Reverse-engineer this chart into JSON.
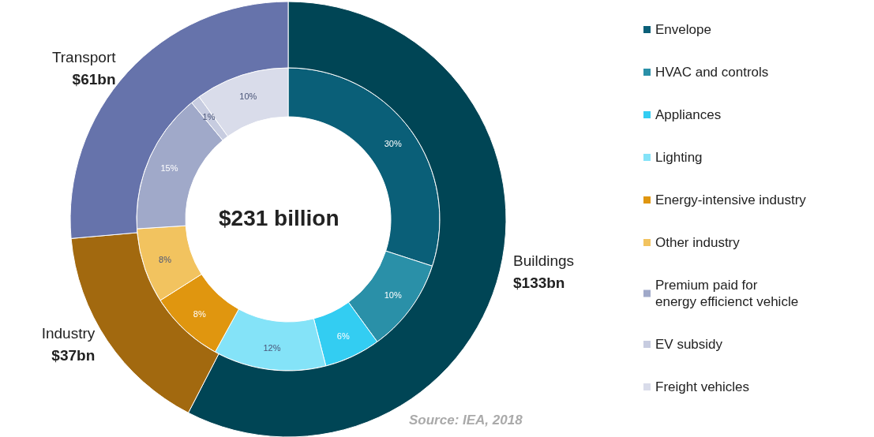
{
  "chart_data": [
    {
      "type": "donut",
      "annotations": [
        "$231 billion",
        "Source: IEA, 2018"
      ],
      "legend": "right",
      "categories": [
        "Envelope",
        "HVAC and controls",
        "Appliances",
        "Lighting",
        "Energy-intensive industry",
        "Other industry",
        "Premium paid for\nenergy efficienct vehicle",
        "EV subsidy",
        "Freight vehicles"
      ],
      "values": [
        30,
        10,
        6,
        12,
        8,
        8,
        15,
        1,
        10
      ],
      "value_labels": [
        "30%",
        "10%",
        "6%",
        "12%",
        "8%",
        "8%",
        "15%",
        "1%",
        "10%"
      ],
      "colors": [
        "#0a5f78",
        "#2a90a8",
        "#33cdf2",
        "#84e3f8",
        "#e0960f",
        "#f2c35f",
        "#a0a9c9",
        "#c7cce0",
        "#d9dcea"
      ]
    },
    {
      "type": "donut",
      "categories": [
        "Buildings",
        "Industry",
        "Transport"
      ],
      "values": [
        133,
        37,
        61
      ],
      "value_labels": [
        "$133bn",
        "$37bn",
        "$61bn"
      ],
      "colors": [
        "#004555",
        "#a2690f",
        "#6673ab"
      ]
    }
  ]
}
